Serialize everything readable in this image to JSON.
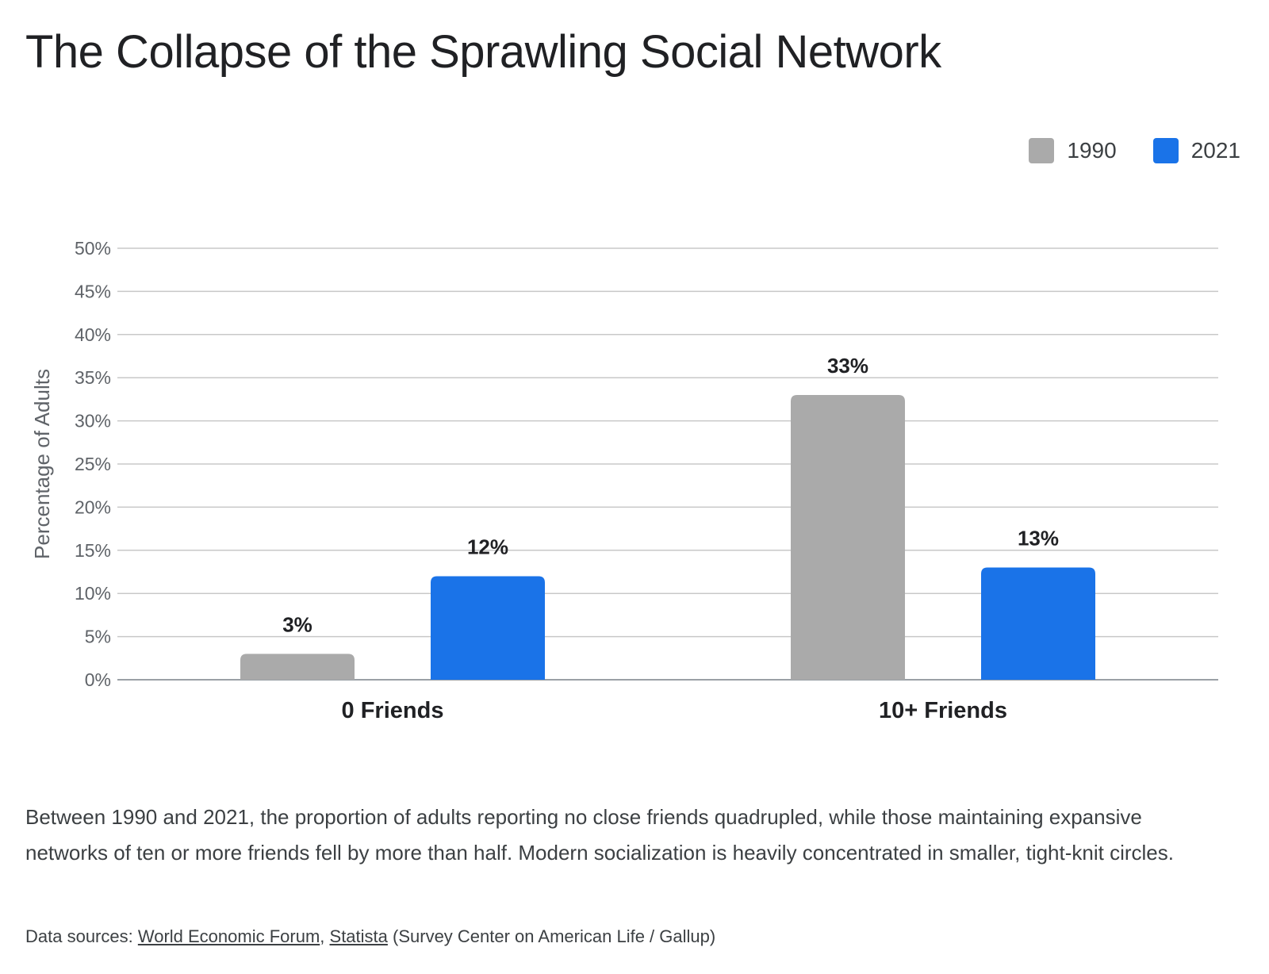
{
  "title": "The Collapse of the Sprawling Social Network",
  "legend": [
    {
      "label": "1990",
      "color": "#aaaaaa"
    },
    {
      "label": "2021",
      "color": "#1a73e8"
    }
  ],
  "chart_data": {
    "type": "bar",
    "categories": [
      "0 Friends",
      "10+ Friends"
    ],
    "series": [
      {
        "name": "1990",
        "values": [
          3,
          33
        ],
        "color": "#aaaaaa"
      },
      {
        "name": "2021",
        "values": [
          12,
          13
        ],
        "color": "#1a73e8"
      }
    ],
    "data_labels": [
      [
        "3%",
        "33%"
      ],
      [
        "12%",
        "13%"
      ]
    ],
    "ylabel": "Percentage of Adults",
    "ylim": [
      0,
      50
    ],
    "yticks": [
      "0%",
      "5%",
      "10%",
      "15%",
      "20%",
      "25%",
      "30%",
      "35%",
      "40%",
      "45%",
      "50%"
    ],
    "grid": true,
    "legend_position": "top-right"
  },
  "description": "Between 1990 and 2021, the proportion of adults reporting no close friends quadrupled, while those maintaining expansive networks of ten or more friends fell by more than half. Modern socialization is heavily concentrated in smaller, tight-knit circles.",
  "sources": {
    "prefix": "Data sources: ",
    "link1": "World Economic Forum",
    "separator": ", ",
    "link2": "Statista",
    "suffix": " (Survey Center on American Life / Gallup)"
  }
}
